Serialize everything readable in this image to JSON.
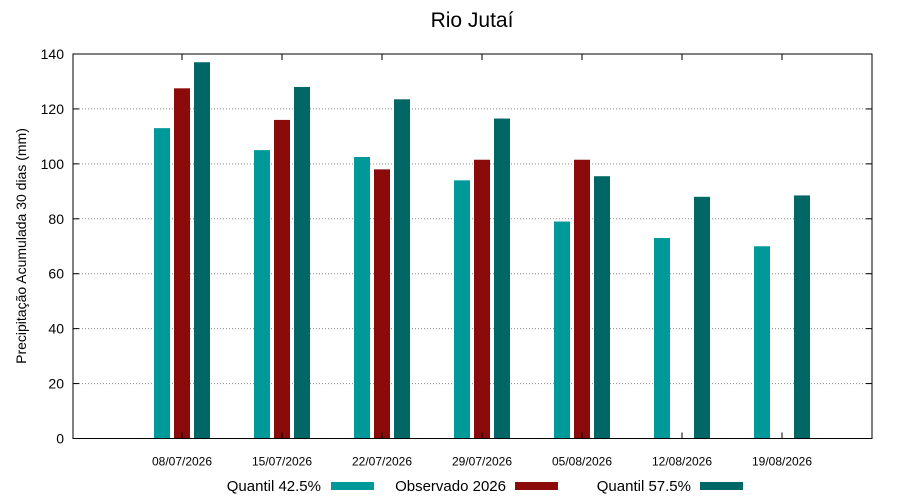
{
  "chart_data": {
    "type": "bar",
    "title": "Rio Jutaí",
    "ylabel": "Precipitação Acumulada 30 dias (mm)",
    "xlabel": "",
    "ylim": [
      0,
      140
    ],
    "yticks": [
      0,
      20,
      40,
      60,
      80,
      100,
      120,
      140
    ],
    "grid": true,
    "legend_position": "bottom",
    "categories": [
      "08/07/2026",
      "15/07/2026",
      "22/07/2026",
      "29/07/2026",
      "05/08/2026",
      "12/08/2026",
      "19/08/2026"
    ],
    "series": [
      {
        "name": "Quantil 42.5%",
        "color": "#009999",
        "values": [
          113,
          105,
          102.5,
          94,
          79,
          73,
          70
        ]
      },
      {
        "name": "Observado 2026",
        "color": "#8b0a0a",
        "values": [
          127.5,
          116,
          98,
          101.5,
          101.5,
          null,
          null
        ]
      },
      {
        "name": "Quantil 57.5%",
        "color": "#006666",
        "values": [
          137,
          128,
          123.5,
          116.5,
          95.5,
          88,
          88.5
        ]
      }
    ]
  }
}
